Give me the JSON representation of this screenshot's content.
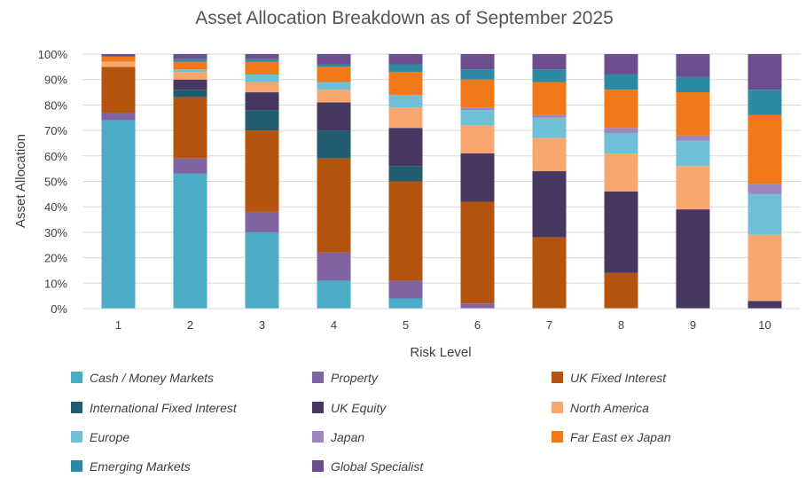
{
  "chart_data": {
    "type": "bar",
    "stacked": true,
    "title": "Asset Allocation Breakdown as of September 2025",
    "xlabel": "Risk Level",
    "ylabel": "Asset Allocation",
    "categories": [
      "1",
      "2",
      "3",
      "4",
      "5",
      "6",
      "7",
      "8",
      "9",
      "10"
    ],
    "ylim": [
      0,
      100
    ],
    "yticks": [
      "0%",
      "10%",
      "20%",
      "30%",
      "40%",
      "50%",
      "60%",
      "70%",
      "80%",
      "90%",
      "100%"
    ],
    "grid": true,
    "legend_position": "bottom",
    "series": [
      {
        "name": "Cash / Money Markets",
        "color": "#4bacc6",
        "values": [
          74,
          53,
          30,
          11,
          4,
          0,
          0,
          0,
          0,
          0
        ]
      },
      {
        "name": "Property",
        "color": "#8064a2",
        "values": [
          3,
          6,
          8,
          11,
          7,
          2,
          0,
          0,
          0,
          0
        ]
      },
      {
        "name": "UK Fixed Interest",
        "color": "#b5540f",
        "values": [
          18,
          24,
          32,
          37,
          39,
          40,
          28,
          14,
          0,
          0
        ]
      },
      {
        "name": "International Fixed Interest",
        "color": "#215d6e",
        "values": [
          0,
          3,
          8,
          11,
          6,
          0,
          0,
          0,
          0,
          0
        ]
      },
      {
        "name": "UK Equity",
        "color": "#473862",
        "values": [
          0,
          4,
          7,
          11,
          15,
          19,
          26,
          32,
          39,
          3
        ]
      },
      {
        "name": "North America",
        "color": "#f8a86f",
        "values": [
          2,
          3,
          4,
          5,
          8,
          11,
          13,
          15,
          17,
          26
        ]
      },
      {
        "name": "Europe",
        "color": "#6fc0d6",
        "values": [
          0,
          1,
          3,
          3,
          5,
          6,
          8,
          8,
          10,
          16
        ]
      },
      {
        "name": "Japan",
        "color": "#9d85c0",
        "values": [
          0,
          0,
          0,
          0,
          0,
          1,
          1,
          2,
          2,
          4
        ]
      },
      {
        "name": "Far East ex Japan",
        "color": "#f07818",
        "values": [
          2,
          3,
          5,
          6,
          9,
          11,
          13,
          15,
          17,
          27
        ]
      },
      {
        "name": "Emerging Markets",
        "color": "#2e8aa3",
        "values": [
          0,
          1,
          1,
          1,
          3,
          4,
          5,
          6,
          6,
          10
        ]
      },
      {
        "name": "Global Specialist",
        "color": "#6c4e8f",
        "values": [
          1,
          2,
          2,
          4,
          4,
          6,
          6,
          8,
          9,
          14
        ]
      }
    ]
  }
}
